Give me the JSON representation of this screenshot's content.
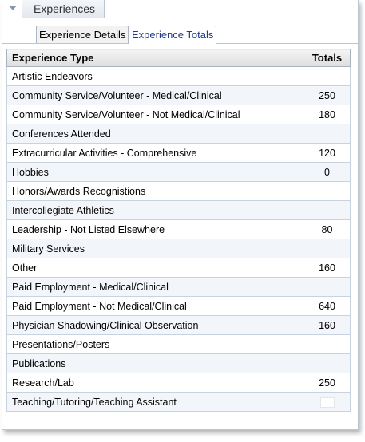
{
  "panel": {
    "title": "Experiences",
    "accent_color": "#1f3c88",
    "border_color": "#b9c6d6"
  },
  "tabs": [
    {
      "label": "Experience Details",
      "active": false
    },
    {
      "label": "Experience Totals",
      "active": true
    }
  ],
  "table": {
    "headers": {
      "type": "Experience Type",
      "totals": "Totals"
    },
    "rows": [
      {
        "type": "Artistic Endeavors",
        "total": ""
      },
      {
        "type": "Community Service/Volunteer - Medical/Clinical",
        "total": "250"
      },
      {
        "type": "Community Service/Volunteer - Not Medical/Clinical",
        "total": "180"
      },
      {
        "type": "Conferences Attended",
        "total": ""
      },
      {
        "type": "Extracurricular Activities - Comprehensive",
        "total": "120"
      },
      {
        "type": "Hobbies",
        "total": "0"
      },
      {
        "type": "Honors/Awards Recognistions",
        "total": ""
      },
      {
        "type": "Intercollegiate Athletics",
        "total": ""
      },
      {
        "type": "Leadership - Not Listed Elsewhere",
        "total": "80"
      },
      {
        "type": "Military Services",
        "total": ""
      },
      {
        "type": "Other",
        "total": "160"
      },
      {
        "type": "Paid Employment - Medical/Clinical",
        "total": ""
      },
      {
        "type": "Paid Employment - Not Medical/Clinical",
        "total": "640"
      },
      {
        "type": "Physician Shadowing/Clinical Observation",
        "total": "160"
      },
      {
        "type": "Presentations/Posters",
        "total": ""
      },
      {
        "type": "Publications",
        "total": ""
      },
      {
        "type": "Research/Lab",
        "total": "250"
      },
      {
        "type": "Teaching/Tutoring/Teaching Assistant",
        "total": ""
      }
    ]
  }
}
